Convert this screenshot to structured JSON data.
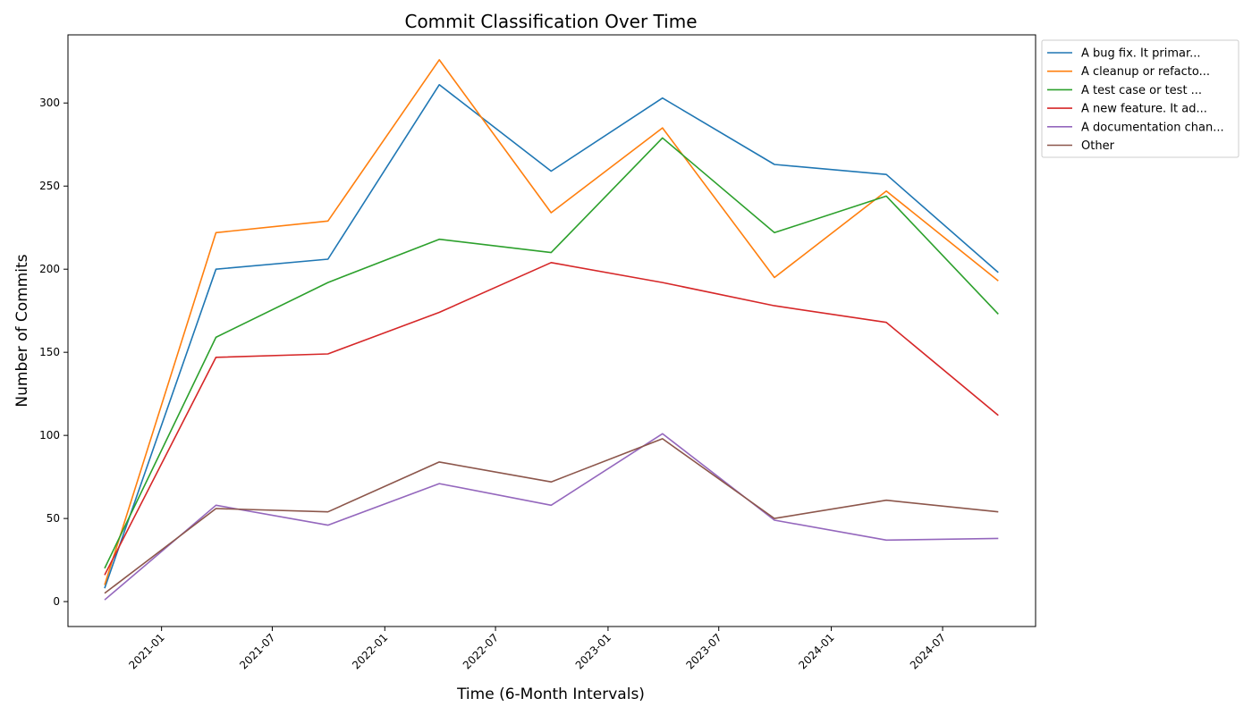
{
  "chart_data": {
    "type": "line",
    "title": "Commit Classification Over Time",
    "xlabel": "Time (6-Month Intervals)",
    "ylabel": "Number of Commits",
    "x": [
      "2020-09-30",
      "2021-03-31",
      "2021-09-30",
      "2022-03-31",
      "2022-09-30",
      "2023-03-31",
      "2023-09-30",
      "2024-03-31",
      "2024-09-30"
    ],
    "x_ticks": [
      "2021-01",
      "2021-07",
      "2022-01",
      "2022-07",
      "2023-01",
      "2023-07",
      "2024-01",
      "2024-07"
    ],
    "xlim": [
      "2020-08-01",
      "2024-11-30"
    ],
    "ylim": [
      -15,
      341
    ],
    "y_ticks": [
      0,
      50,
      100,
      150,
      200,
      250,
      300
    ],
    "grid": false,
    "legend_position": "outside-top-right",
    "series": [
      {
        "name": "A bug fix. It primar...",
        "color": "#1f77b4",
        "values": [
          8,
          200,
          206,
          311,
          259,
          303,
          263,
          257,
          198
        ]
      },
      {
        "name": "A cleanup or refacto...",
        "color": "#ff7f0e",
        "values": [
          10,
          222,
          229,
          326,
          234,
          285,
          195,
          247,
          193
        ]
      },
      {
        "name": "A test case or test ...",
        "color": "#2ca02c",
        "values": [
          20,
          159,
          192,
          218,
          210,
          279,
          222,
          244,
          173
        ]
      },
      {
        "name": "A new feature. It ad...",
        "color": "#d62728",
        "values": [
          16,
          147,
          149,
          174,
          204,
          192,
          178,
          168,
          112
        ]
      },
      {
        "name": "A documentation chan...",
        "color": "#9467bd",
        "values": [
          1,
          58,
          46,
          71,
          58,
          101,
          49,
          37,
          38
        ]
      },
      {
        "name": "Other",
        "color": "#8c564b",
        "values": [
          5,
          56,
          54,
          84,
          72,
          98,
          50,
          61,
          54
        ]
      }
    ]
  }
}
